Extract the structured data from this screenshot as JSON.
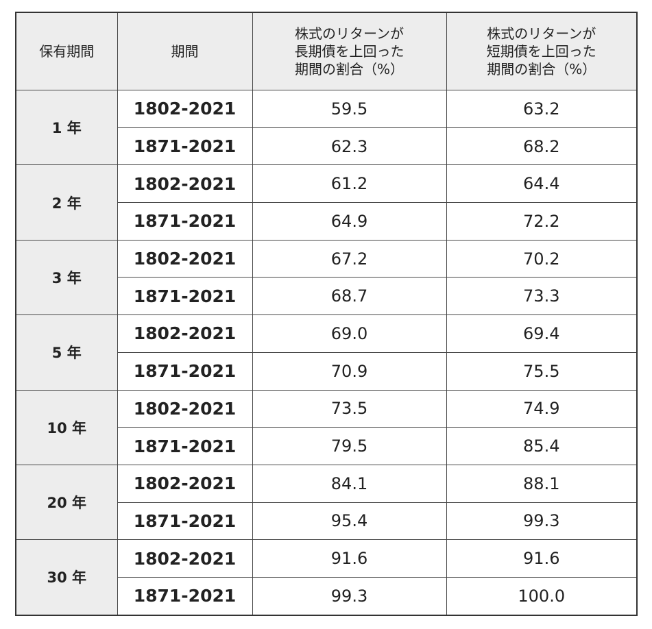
{
  "table": {
    "header": [
      [
        "保有期間"
      ],
      [
        "期間"
      ],
      [
        "株式のリターンが",
        "長期債を上回った",
        "期間の割合（%）"
      ],
      [
        "株式のリターンが",
        "短期債を上回った",
        "期間の割合（%）"
      ]
    ],
    "groups": [
      {
        "holding": "1 年",
        "rows": [
          [
            "1802-2021",
            "59.5",
            "63.2"
          ],
          [
            "1871-2021",
            "62.3",
            "68.2"
          ]
        ]
      },
      {
        "holding": "2 年",
        "rows": [
          [
            "1802-2021",
            "61.2",
            "64.4"
          ],
          [
            "1871-2021",
            "64.9",
            "72.2"
          ]
        ]
      },
      {
        "holding": "3 年",
        "rows": [
          [
            "1802-2021",
            "67.2",
            "70.2"
          ],
          [
            "1871-2021",
            "68.7",
            "73.3"
          ]
        ]
      },
      {
        "holding": "5 年",
        "rows": [
          [
            "1802-2021",
            "69.0",
            "69.4"
          ],
          [
            "1871-2021",
            "70.9",
            "75.5"
          ]
        ]
      },
      {
        "holding": "10 年",
        "rows": [
          [
            "1802-2021",
            "73.5",
            "74.9"
          ],
          [
            "1871-2021",
            "79.5",
            "85.4"
          ]
        ]
      },
      {
        "holding": "20 年",
        "rows": [
          [
            "1802-2021",
            "84.1",
            "88.1"
          ],
          [
            "1871-2021",
            "95.4",
            "99.3"
          ]
        ]
      },
      {
        "holding": "30 年",
        "rows": [
          [
            "1802-2021",
            "91.6",
            "91.6"
          ],
          [
            "1871-2021",
            "99.3",
            "100.0"
          ]
        ]
      }
    ]
  }
}
